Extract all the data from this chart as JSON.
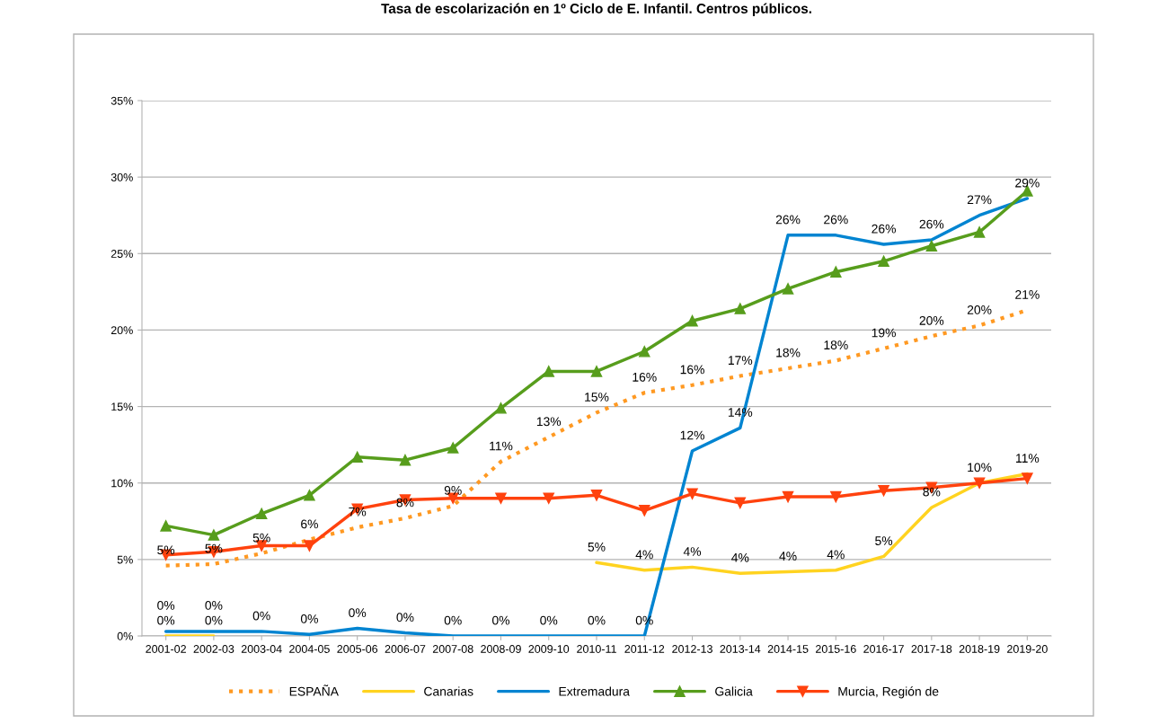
{
  "chart_data": {
    "type": "line",
    "title": "Tasa de escolarización en 1º Ciclo de E. Infantil. Centros públicos.",
    "categories": [
      "2001-02",
      "2002-03",
      "2003-04",
      "2004-05",
      "2005-06",
      "2006-07",
      "2007-08",
      "2008-09",
      "2009-10",
      "2010-11",
      "2011-12",
      "2012-13",
      "2013-14",
      "2014-15",
      "2015-16",
      "2016-17",
      "2017-18",
      "2018-19",
      "2019-20"
    ],
    "ylim": [
      0,
      35
    ],
    "yticks": [
      {
        "value": 0,
        "label": "0%"
      },
      {
        "value": 5,
        "label": "5%"
      },
      {
        "value": 10,
        "label": "10%"
      },
      {
        "value": 15,
        "label": "15%"
      },
      {
        "value": 20,
        "label": "20%"
      },
      {
        "value": 25,
        "label": "25%"
      },
      {
        "value": 30,
        "label": "30%"
      },
      {
        "value": 35,
        "label": "35%"
      }
    ],
    "grid": "y",
    "legend": "bottom",
    "series": [
      {
        "name": "ESPAÑA",
        "color": "#ff9922",
        "line_style": "dotted",
        "marker": "none",
        "values": [
          4.6,
          4.7,
          5.4,
          6.3,
          7.1,
          7.7,
          8.5,
          11.4,
          13.0,
          14.6,
          15.9,
          16.4,
          17.0,
          17.5,
          18.0,
          18.8,
          19.6,
          20.3,
          21.3
        ],
        "value_labels": [
          "5%",
          "5%",
          "5%",
          "6%",
          "7%",
          "8%",
          "9%",
          "11%",
          "13%",
          "15%",
          "16%",
          "16%",
          "17%",
          "18%",
          "18%",
          "19%",
          "20%",
          "20%",
          "21%"
        ]
      },
      {
        "name": "Canarias",
        "color": "#ffd320",
        "line_style": "solid",
        "marker": "none",
        "values": [
          0,
          0,
          null,
          null,
          null,
          null,
          null,
          null,
          null,
          4.8,
          4.3,
          4.5,
          4.1,
          4.2,
          4.3,
          5.2,
          8.4,
          10.0,
          10.6
        ],
        "value_labels": [
          "0%",
          "0%",
          null,
          null,
          null,
          null,
          null,
          null,
          null,
          "5%",
          "4%",
          "4%",
          "4%",
          "4%",
          "4%",
          "5%",
          "8%",
          "10%",
          "11%"
        ]
      },
      {
        "name": "Extremadura",
        "color": "#0084d1",
        "line_style": "solid",
        "marker": "none",
        "values": [
          0.3,
          0.3,
          0.3,
          0.1,
          0.5,
          0.2,
          0,
          0,
          0,
          0,
          0,
          12.1,
          13.6,
          26.2,
          26.2,
          25.6,
          25.9,
          27.5,
          28.6
        ],
        "value_labels": [
          "0%",
          "0%",
          "0%",
          "0%",
          "0%",
          "0%",
          "0%",
          "0%",
          "0%",
          "0%",
          "0%",
          "12%",
          "14%",
          "26%",
          "26%",
          "26%",
          "26%",
          "27%",
          "29%"
        ]
      },
      {
        "name": "Galicia",
        "color": "#579d1c",
        "line_style": "solid",
        "marker": "triangle",
        "values": [
          7.2,
          6.6,
          8.0,
          9.2,
          11.7,
          11.5,
          12.3,
          14.9,
          17.3,
          17.3,
          18.6,
          20.6,
          21.4,
          22.7,
          23.8,
          24.5,
          25.5,
          26.4,
          29.1
        ]
      },
      {
        "name": "Murcia, Región de",
        "color": "#ff420e",
        "line_style": "solid",
        "marker": "triangle_down",
        "values": [
          5.3,
          5.5,
          5.9,
          5.9,
          8.3,
          8.9,
          9.0,
          9.0,
          9.0,
          9.2,
          8.2,
          9.3,
          8.7,
          9.1,
          9.1,
          9.5,
          9.7,
          10.0,
          10.3
        ]
      }
    ]
  }
}
